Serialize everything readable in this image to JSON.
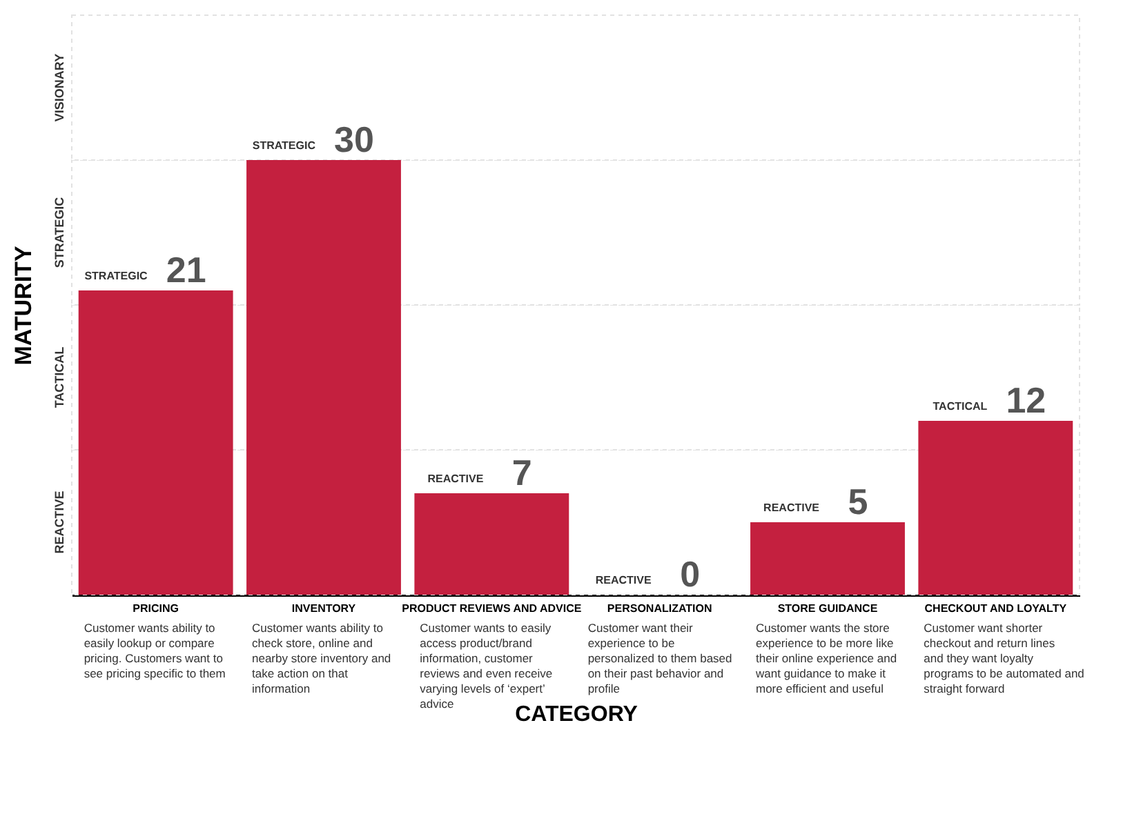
{
  "chart_data": {
    "type": "bar",
    "xlabel": "CATEGORY",
    "ylabel": "MATURITY",
    "categories": [
      "PRICING",
      "INVENTORY",
      "PRODUCT REVIEWS AND ADVICE",
      "PERSONALIZATION",
      "STORE GUIDANCE",
      "CHECKOUT AND LOYALTY"
    ],
    "values": [
      21,
      30,
      7,
      0,
      5,
      12
    ],
    "color": "#c4203f",
    "ylim": [
      0,
      40
    ],
    "bands": [
      {
        "axis": "y",
        "from": 0,
        "to": 10,
        "label": "REACTIVE"
      },
      {
        "axis": "y",
        "from": 10,
        "to": 20,
        "label": "TACTICAL"
      },
      {
        "axis": "y",
        "from": 20,
        "to": 30,
        "label": "STRATEGIC"
      },
      {
        "axis": "y",
        "from": 30,
        "to": 40,
        "label": "VISIONARY"
      }
    ],
    "data_labels": true,
    "annotations": [
      {
        "text": "STRATEGIC",
        "x": "PRICING",
        "y": 21
      },
      {
        "text": "STRATEGIC",
        "x": "INVENTORY",
        "y": 30
      },
      {
        "text": "REACTIVE",
        "x": "PRODUCT REVIEWS AND ADVICE",
        "y": 7
      },
      {
        "text": "REACTIVE",
        "x": "PERSONALIZATION",
        "y": 0
      },
      {
        "text": "REACTIVE",
        "x": "STORE GUIDANCE",
        "y": 5
      },
      {
        "text": "TACTICAL",
        "x": "CHECKOUT AND LOYALTY",
        "y": 12
      },
      "Customer wants ability to easily lookup or compare pricing. Customers want to see pricing specific to them",
      "Customer wants ability to check store, online and nearby store inventory and take action on that information",
      "Customer wants to easily access product/brand information, customer reviews and even receive varying levels of ‘expert’ advice",
      "Customer want their experience to be personalized to them based on their past behavior and profile",
      "Customer wants the store experience to be more like their online experience and want guidance to make it more efficient and useful",
      "Customer want shorter checkout and return lines and they want loyalty programs to be automated and straight forward"
    ]
  }
}
